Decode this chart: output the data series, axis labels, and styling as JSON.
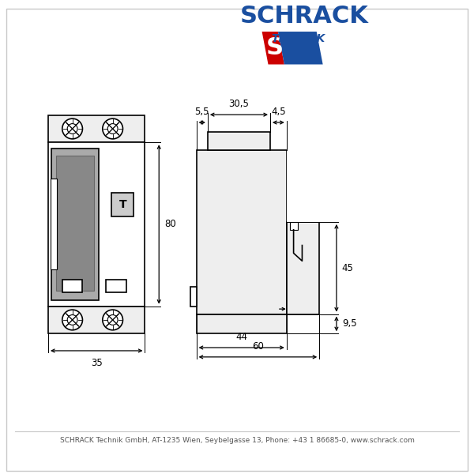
{
  "bg_color": "#ffffff",
  "border_color": "#c8c8c8",
  "line_color": "#000000",
  "fill_light": "#eeeeee",
  "fill_gray": "#999999",
  "fill_darkgray": "#888888",
  "schrack_blue": "#1a4fa0",
  "schrack_red": "#cc0000",
  "footer_text": "SCHRACK Technik GmbH, AT-1235 Wien, Seybelgasse 13, Phone: +43 1 86685-0, www.schrack.com",
  "dim_55": "5,5",
  "dim_305": "30,5",
  "dim_45t": "4,5",
  "dim_80": "80",
  "dim_35": "35",
  "dim_44": "44",
  "dim_60": "60",
  "dim_45": "45",
  "dim_95": "9,5"
}
